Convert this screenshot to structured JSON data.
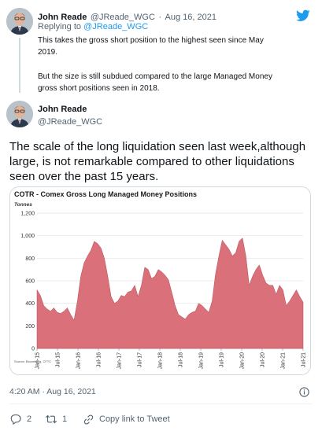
{
  "reply_tweet": {
    "author_name": "John Reade",
    "author_handle": "@JReade_WGC",
    "separator": "·",
    "date": "Aug 16, 2021",
    "replying_prefix": "Replying to",
    "replying_handle": "@JReade_WGC",
    "text_line1": "This takes the gross short position to the highest seen since May",
    "text_line2": "2019.",
    "text_line3": "But the size is still subdued compared to the large Managed Money",
    "text_line4": "gross short positions seen in 2018."
  },
  "main_tweet": {
    "author_name": "John Reade",
    "author_handle": "@JReade_WGC",
    "text_line1": "The scale of the long liquidation seen last week,although",
    "text_line2": "large, is not remarkable compared to other liquidations",
    "text_line3": "seen over the past 15 years.",
    "timestamp": "4:20 AM · Aug 16, 2021"
  },
  "actions": {
    "reply_count": "2",
    "retweet_count": "1",
    "copy_link_label": "Copy link to Tweet"
  },
  "colors": {
    "brand": "#1d9bf0",
    "area_fill": "#d9707a",
    "area_stroke": "#b84a56"
  },
  "icons": [
    "twitter-bird-icon",
    "reply-icon",
    "retweet-icon",
    "copy-link-icon",
    "info-icon"
  ],
  "chart_data": {
    "type": "area",
    "title": "COTR - Comex Gross Long Managed Money Positions",
    "ylabel": "Tonnes",
    "source": "Source: Bloomberg, CFTC",
    "ylim": [
      0,
      1200
    ],
    "yticks": [
      "0",
      "200",
      "400",
      "600",
      "800",
      "1,000",
      "1,200"
    ],
    "xticks": [
      "Jan-15",
      "Jul-15",
      "Jan-16",
      "Jul-16",
      "Jan-17",
      "Jul-17",
      "Jan-18",
      "Jul-18",
      "Jan-19",
      "Jul-19",
      "Jan-20",
      "Jul-20",
      "Jan-21",
      "Jul-21"
    ],
    "grid": true,
    "x": [
      "Jan-15",
      "Feb-15",
      "Mar-15",
      "Apr-15",
      "May-15",
      "Jun-15",
      "Jul-15",
      "Aug-15",
      "Sep-15",
      "Oct-15",
      "Nov-15",
      "Dec-15",
      "Jan-16",
      "Feb-16",
      "Mar-16",
      "Apr-16",
      "May-16",
      "Jun-16",
      "Jul-16",
      "Aug-16",
      "Sep-16",
      "Oct-16",
      "Nov-16",
      "Dec-16",
      "Jan-17",
      "Feb-17",
      "Mar-17",
      "Apr-17",
      "May-17",
      "Jun-17",
      "Jul-17",
      "Aug-17",
      "Sep-17",
      "Oct-17",
      "Nov-17",
      "Dec-17",
      "Jan-18",
      "Feb-18",
      "Mar-18",
      "Apr-18",
      "May-18",
      "Jun-18",
      "Jul-18",
      "Aug-18",
      "Sep-18",
      "Oct-18",
      "Nov-18",
      "Dec-18",
      "Jan-19",
      "Feb-19",
      "Mar-19",
      "Apr-19",
      "May-19",
      "Jun-19",
      "Jul-19",
      "Aug-19",
      "Sep-19",
      "Oct-19",
      "Nov-19",
      "Dec-19",
      "Jan-20",
      "Feb-20",
      "Mar-20",
      "Apr-20",
      "May-20",
      "Jun-20",
      "Jul-20",
      "Aug-20",
      "Sep-20",
      "Oct-20",
      "Nov-20",
      "Dec-20",
      "Jan-21",
      "Feb-21",
      "Mar-21",
      "Apr-21",
      "May-21",
      "Jun-21",
      "Jul-21",
      "Aug-21"
    ],
    "values": [
      520,
      470,
      380,
      350,
      330,
      360,
      320,
      310,
      330,
      360,
      300,
      250,
      420,
      640,
      760,
      820,
      870,
      950,
      930,
      890,
      800,
      640,
      460,
      400,
      420,
      470,
      460,
      500,
      510,
      560,
      460,
      560,
      720,
      700,
      620,
      640,
      700,
      680,
      650,
      610,
      500,
      380,
      300,
      280,
      260,
      300,
      320,
      330,
      400,
      380,
      350,
      320,
      420,
      660,
      820,
      960,
      920,
      880,
      820,
      850,
      950,
      980,
      820,
      560,
      640,
      700,
      740,
      650,
      580,
      560,
      560,
      480,
      560,
      520,
      380,
      420,
      470,
      520,
      460,
      410
    ]
  }
}
